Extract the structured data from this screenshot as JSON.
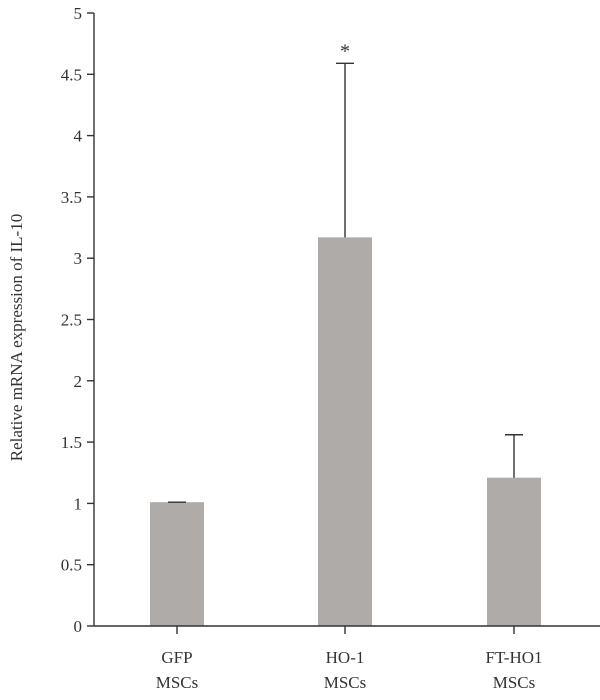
{
  "chart_data": {
    "type": "bar",
    "title": "",
    "xlabel": "",
    "ylabel": "Relative mRNA expression of IL-10",
    "ylim": [
      0,
      5
    ],
    "yticks": [
      0,
      0.5,
      1,
      1.5,
      2,
      2.5,
      3,
      3.5,
      4,
      4.5,
      5
    ],
    "categories": [
      [
        "GFP",
        "MSCs"
      ],
      [
        "HO-1",
        "MSCs"
      ],
      [
        "FT-HO1",
        "MSCs"
      ]
    ],
    "values": [
      1.01,
      3.17,
      1.21
    ],
    "error_upper": [
      0.0,
      1.42,
      0.35
    ],
    "annotations": [
      "",
      "*",
      ""
    ],
    "grid": false,
    "legend": "none",
    "colors": {
      "bar": "#aeaba9",
      "axis": "#333333",
      "text": "#333333"
    }
  }
}
